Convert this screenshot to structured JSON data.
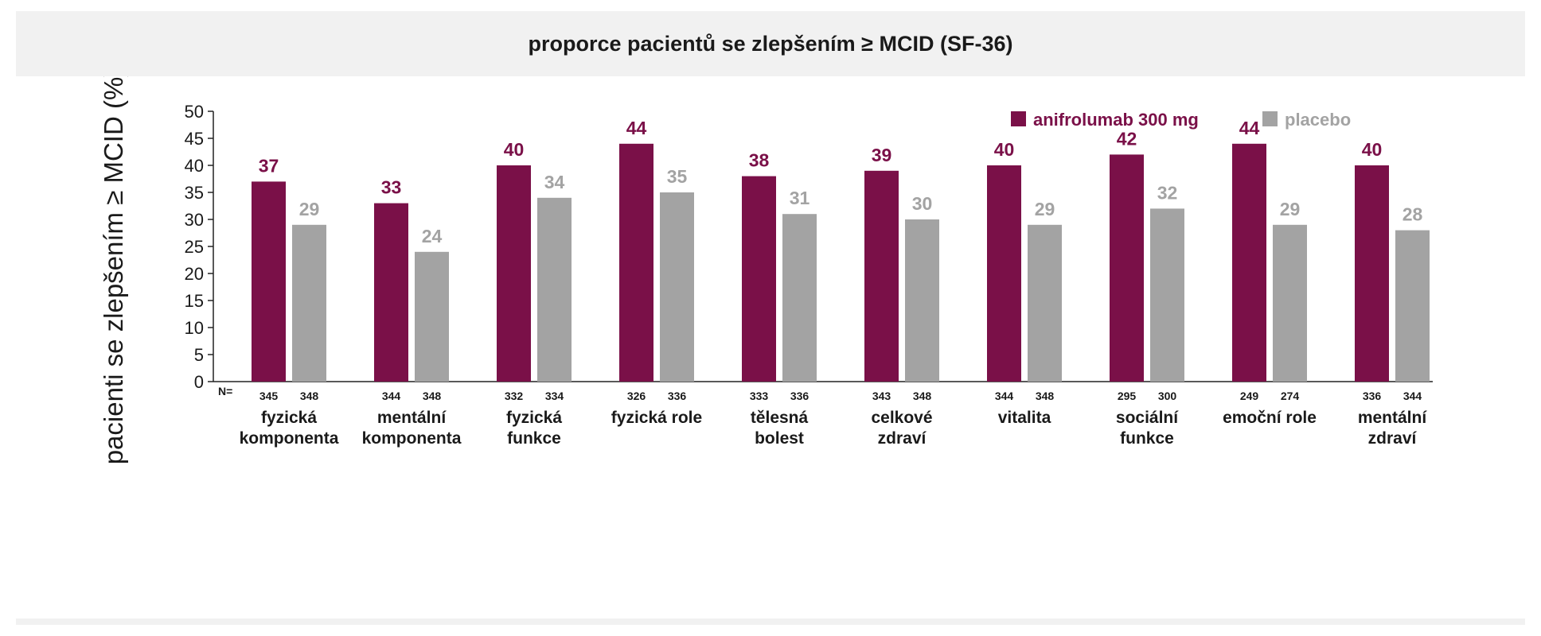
{
  "chart_data": {
    "type": "bar",
    "title": "proporce pacientů se zlepšením ≥ MCID (SF-36)",
    "ylabel": "pacienti se zlepšením ≥ MCID (%)",
    "xlabel": "",
    "ylim": [
      0,
      50
    ],
    "yticks": [
      0,
      5,
      10,
      15,
      20,
      25,
      30,
      35,
      40,
      45,
      50
    ],
    "grid": false,
    "legend_position": "top-right",
    "n_label": "N=",
    "categories": [
      [
        "fyzická",
        "komponenta"
      ],
      [
        "mentální",
        "komponenta"
      ],
      [
        "fyzická",
        "funkce"
      ],
      [
        "fyzická role"
      ],
      [
        "tělesná",
        "bolest"
      ],
      [
        "celkové",
        "zdraví"
      ],
      [
        "vitalita"
      ],
      [
        "sociální",
        "funkce"
      ],
      [
        "emoční role"
      ],
      [
        "mentální",
        "zdraví"
      ]
    ],
    "series": [
      {
        "name": "anifrolumab 300 mg",
        "color": "#7a1048",
        "values": [
          37,
          33,
          40,
          44,
          38,
          39,
          40,
          42,
          44,
          40
        ],
        "n": [
          345,
          344,
          332,
          326,
          333,
          343,
          344,
          295,
          249,
          336
        ]
      },
      {
        "name": "placebo",
        "color": "#a3a3a3",
        "values": [
          29,
          24,
          34,
          35,
          31,
          30,
          29,
          32,
          29,
          28
        ],
        "n": [
          348,
          348,
          334,
          336,
          336,
          348,
          348,
          300,
          274,
          344
        ]
      }
    ]
  }
}
